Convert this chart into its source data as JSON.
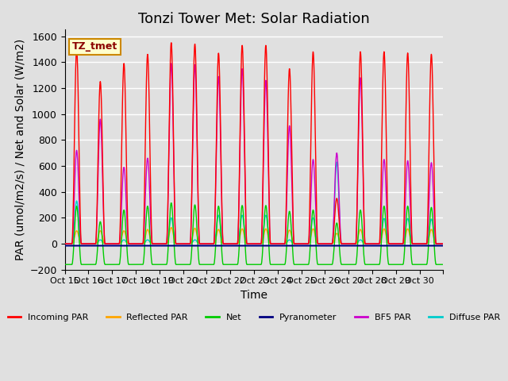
{
  "title": "Tonzi Tower Met: Solar Radiation",
  "ylabel": "PAR (umol/m2/s) / Net and Solar (W/m2)",
  "xlabel": "Time",
  "ylim": [
    -200,
    1650
  ],
  "n_days": 16,
  "label_box": "TZ_tmet",
  "x_tick_labels": [
    "Oct 15",
    "Oct 16",
    "Oct 17",
    "Oct 18",
    "Oct 19",
    "Oct 20",
    "Oct 21",
    "Oct 22",
    "Oct 23",
    "Oct 24",
    "Oct 25",
    "Oct 26",
    "Oct 27",
    "Oct 28",
    "Oct 29",
    "Oct 30",
    ""
  ],
  "yticks": [
    -200,
    0,
    200,
    400,
    600,
    800,
    1000,
    1200,
    1400,
    1600
  ],
  "series": {
    "incoming_par": {
      "color": "#FF0000",
      "label": "Incoming PAR"
    },
    "reflected_par": {
      "color": "#FFA500",
      "label": "Reflected PAR"
    },
    "net": {
      "color": "#00CC00",
      "label": "Net"
    },
    "pyranometer": {
      "color": "#000080",
      "label": "Pyranometer"
    },
    "bf5_par": {
      "color": "#CC00CC",
      "label": "BF5 PAR"
    },
    "diffuse_par": {
      "color": "#00CCCC",
      "label": "Diffuse PAR"
    }
  },
  "background_color": "#E0E0E0",
  "plot_bg_color": "#E0E0E0",
  "grid_color": "#FFFFFF",
  "title_fontsize": 13,
  "axis_fontsize": 10,
  "tick_fontsize": 9,
  "incoming_peaks": [
    1500,
    1250,
    1390,
    1460,
    1550,
    1540,
    1470,
    1530,
    1530,
    1350,
    1480,
    350,
    1480,
    1480,
    1470,
    1460
  ],
  "reflected_peaks": [
    100,
    100,
    100,
    110,
    125,
    120,
    110,
    115,
    115,
    105,
    115,
    80,
    110,
    115,
    115,
    110
  ],
  "bf5_peaks": [
    720,
    960,
    590,
    660,
    1390,
    1380,
    1290,
    1350,
    1260,
    910,
    650,
    700,
    1280,
    650,
    640,
    625
  ],
  "diffuse_peaks": [
    330,
    30,
    30,
    30,
    200,
    30,
    220,
    220,
    220,
    30,
    200,
    630,
    30,
    195,
    195,
    190
  ],
  "net_day_peaks": [
    450,
    330,
    420,
    450,
    475,
    460,
    450,
    455,
    455,
    410,
    420,
    320,
    420,
    450,
    450,
    440
  ],
  "pyranometer_baseline": -15
}
